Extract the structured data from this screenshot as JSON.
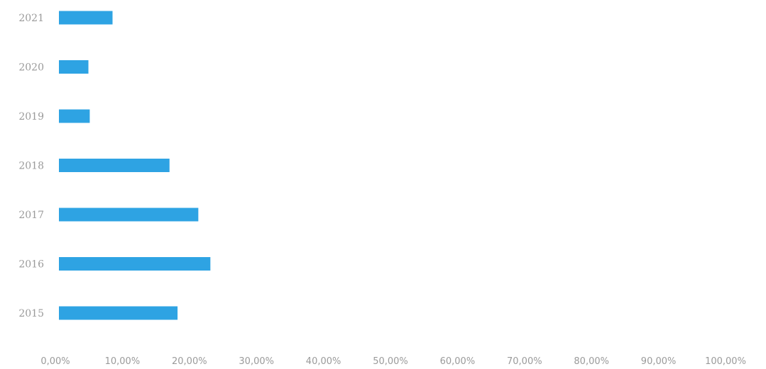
{
  "chart_data": {
    "type": "bar",
    "orientation": "horizontal",
    "categories": [
      "2021",
      "2020",
      "2019",
      "2018",
      "2017",
      "2016",
      "2015"
    ],
    "values": [
      8.0,
      4.4,
      4.6,
      16.5,
      20.8,
      22.6,
      17.7
    ],
    "value_unit": "%",
    "xlim": [
      0,
      100
    ],
    "xticks": [
      "0,00%",
      "10,00%",
      "20,00%",
      "30,00%",
      "40,00%",
      "50,00%",
      "60,00%",
      "70,00%",
      "80,00%",
      "90,00%",
      "100,00%"
    ],
    "grid": false,
    "bar_color": "#2ea3e3"
  }
}
